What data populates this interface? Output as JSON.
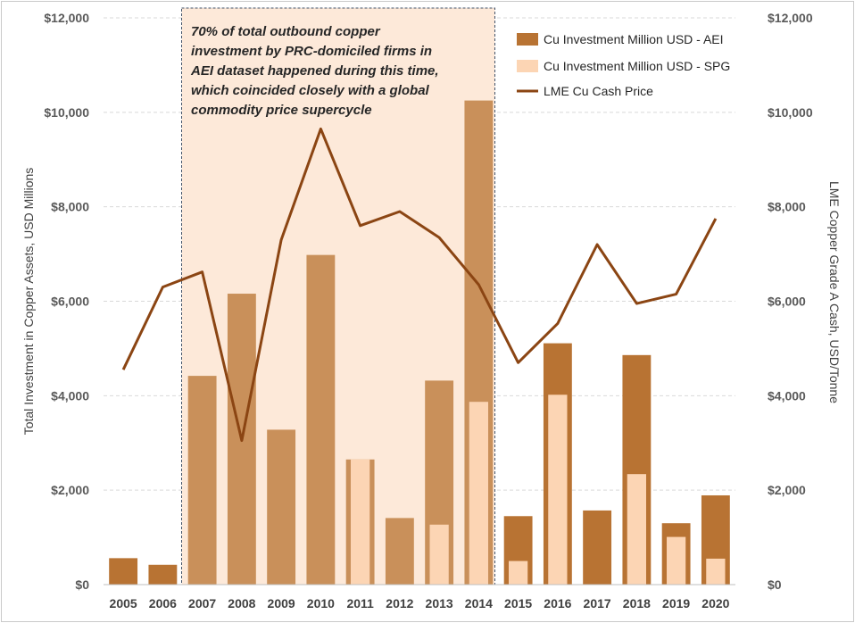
{
  "chart_data": {
    "type": "bar",
    "categories": [
      "2005",
      "2006",
      "2007",
      "2008",
      "2009",
      "2010",
      "2011",
      "2012",
      "2013",
      "2014",
      "2015",
      "2016",
      "2017",
      "2018",
      "2019",
      "2020"
    ],
    "series": [
      {
        "name": "Cu Investment Million USD - AEI",
        "kind": "bar",
        "color": "#b87333",
        "values": [
          560,
          420,
          4420,
          6160,
          3280,
          6980,
          2650,
          1410,
          4320,
          10250,
          1450,
          5110,
          1570,
          4860,
          1300,
          1890
        ]
      },
      {
        "name": "Cu Investment Million USD - SPG",
        "kind": "bar",
        "color": "#fcd5b4",
        "values": [
          0,
          0,
          0,
          0,
          0,
          0,
          2650,
          0,
          1270,
          3870,
          500,
          4020,
          0,
          2340,
          1010,
          550
        ]
      },
      {
        "name": "LME Cu Cash Price",
        "kind": "line",
        "color": "#8b4513",
        "axis": "right",
        "values": [
          4550,
          6300,
          6620,
          3050,
          7300,
          9650,
          7600,
          7900,
          7350,
          6350,
          4700,
          5530,
          7200,
          5950,
          6150,
          7750
        ]
      }
    ],
    "left_axis": {
      "label": "Total Investment in Copper Assets, USD Millions",
      "ylim": [
        0,
        12000
      ],
      "ticks": [
        "$0",
        "$2,000",
        "$4,000",
        "$6,000",
        "$8,000",
        "$10,000",
        "$12,000"
      ]
    },
    "right_axis": {
      "label": "LME Copper Grade A Cash, USD/Tonne",
      "ylim": [
        0,
        12000
      ],
      "ticks": [
        "$0",
        "$2,000",
        "$4,000",
        "$6,000",
        "$8,000",
        "$10,000",
        "$12,000"
      ]
    },
    "grid": true,
    "legend_position": "top-right",
    "highlight": {
      "from": "2007",
      "to": "2014",
      "fill": "#fde9d9",
      "text_lines": [
        "70% of total outbound copper",
        "investment by PRC-domiciled firms in",
        "AEI dataset happened during this time,",
        "which coincided closely with a global",
        "commodity price supercycle"
      ]
    }
  }
}
